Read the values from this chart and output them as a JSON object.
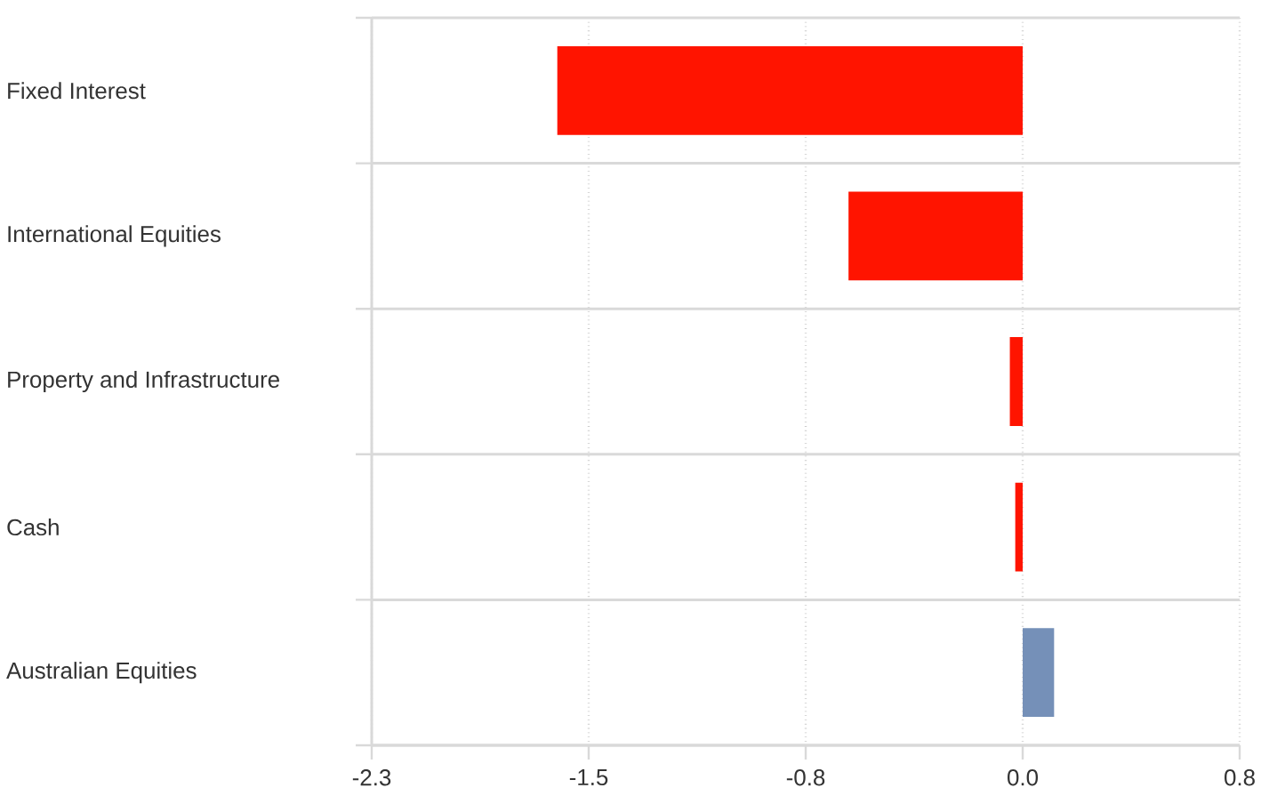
{
  "chart_data": {
    "type": "bar",
    "orientation": "horizontal",
    "categories": [
      "Fixed Interest",
      "International Equities",
      "Property and Infrastructure",
      "Cash",
      "Australian Equities"
    ],
    "values": [
      -1.63,
      -0.61,
      -0.045,
      -0.026,
      0.11
    ],
    "colors": [
      "#ff1400",
      "#ff1400",
      "#ff1400",
      "#ff1400",
      "#7590b8"
    ],
    "xlim": [
      -2.28,
      0.76
    ],
    "xticks": [
      {
        "value": -2.28,
        "label": "-2.3"
      },
      {
        "value": -1.52,
        "label": "-1.5"
      },
      {
        "value": -0.76,
        "label": "-0.8"
      },
      {
        "value": 0,
        "label": "0.0"
      },
      {
        "value": 0.76,
        "label": "0.8"
      }
    ],
    "grid": true
  }
}
